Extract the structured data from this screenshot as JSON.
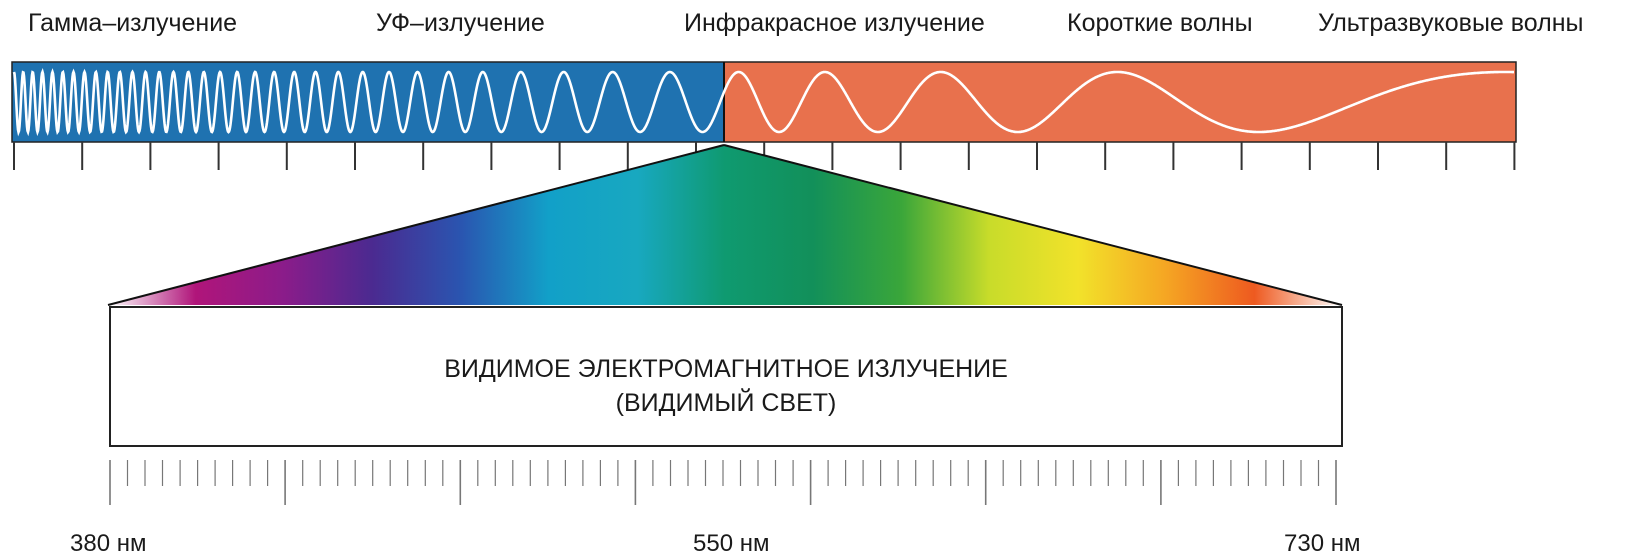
{
  "spectrum": {
    "bands": [
      {
        "label": "Гамма–излучение"
      },
      {
        "label": "УФ–излучение"
      },
      {
        "label": "Инфракрасное излучение"
      },
      {
        "label": "Короткие волны"
      },
      {
        "label": "Ультразвуковые волны"
      }
    ],
    "colors": {
      "left_band": "#1f72b0",
      "right_band": "#e8714d",
      "wave": "#ffffff",
      "rule": "#333333"
    }
  },
  "visible": {
    "title_line1": "ВИДИМОЕ ЭЛЕКТРОМАГНИТНОЕ ИЗЛУЧЕНИЕ",
    "title_line2": "(ВИДИМЫЙ СВЕТ)",
    "scale_labels": [
      {
        "text": "380 нм"
      },
      {
        "text": "550 нм"
      },
      {
        "text": "730 нм"
      }
    ],
    "gradient_colors": [
      "#ffffff",
      "#b0157a",
      "#8a1c8a",
      "#4b2a90",
      "#2a55b0",
      "#12a0c8",
      "#18a8c0",
      "#0f9a70",
      "#12905a",
      "#3aa63a",
      "#c8dc2a",
      "#f2e22a",
      "#f5a623",
      "#ee5a20",
      "#ffffff"
    ]
  }
}
